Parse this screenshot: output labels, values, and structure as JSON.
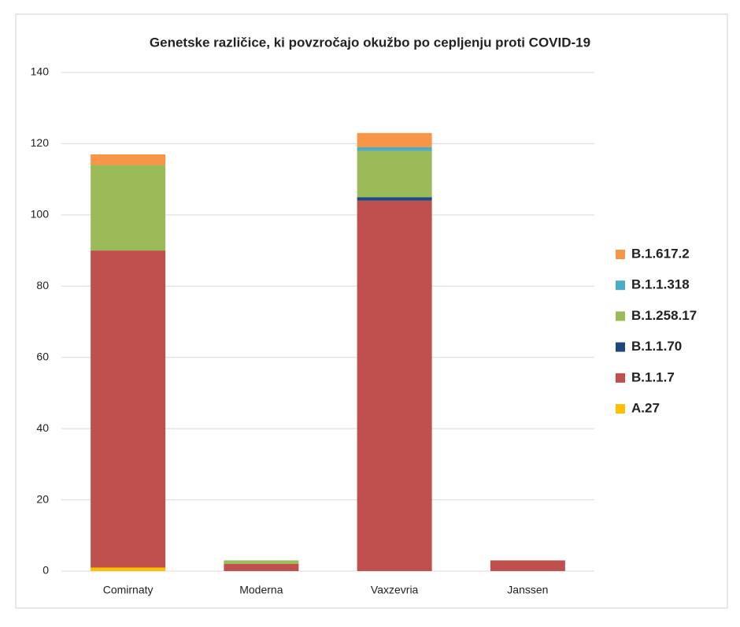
{
  "chart_data": {
    "type": "stacked-bar",
    "title": "Genetske različice, ki povzročajo okužbo po cepljenju proti COVID-19",
    "categories": [
      "Comirnaty",
      "Moderna",
      "Vaxzevria",
      "Janssen"
    ],
    "series": [
      {
        "name": "A.27",
        "color": "#ffc000",
        "values": [
          1,
          0,
          0,
          0
        ]
      },
      {
        "name": "B.1.1.7",
        "color": "#c0504d",
        "values": [
          89,
          2,
          104,
          3
        ]
      },
      {
        "name": "B.1.1.70",
        "color": "#1f497d",
        "values": [
          0,
          0,
          1,
          0
        ]
      },
      {
        "name": "B.1.258.17",
        "color": "#9bbb59",
        "values": [
          24,
          1,
          13,
          0
        ]
      },
      {
        "name": "B.1.1.318",
        "color": "#4bacc6",
        "values": [
          0,
          0,
          1,
          0
        ]
      },
      {
        "name": "B.1.617.2",
        "color": "#f79646",
        "values": [
          3,
          0,
          4,
          0
        ]
      }
    ],
    "ylim": [
      0,
      140
    ],
    "yticks": [
      0,
      20,
      40,
      60,
      80,
      100,
      120,
      140
    ],
    "grid": true,
    "legend": "right"
  }
}
